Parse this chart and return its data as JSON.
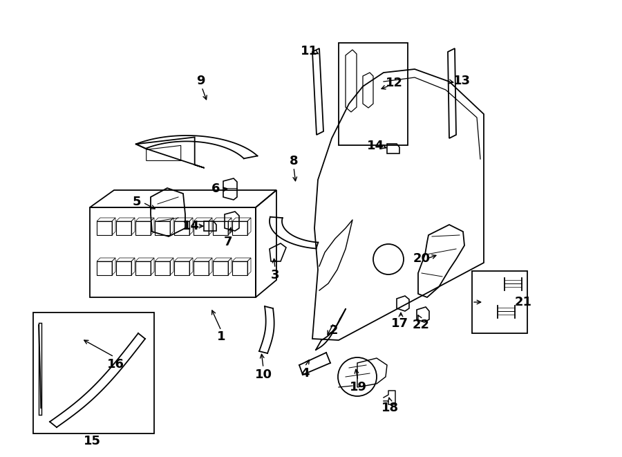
{
  "background_color": "#ffffff",
  "line_color": "#000000",
  "lw": 1.3,
  "fs": 13
}
